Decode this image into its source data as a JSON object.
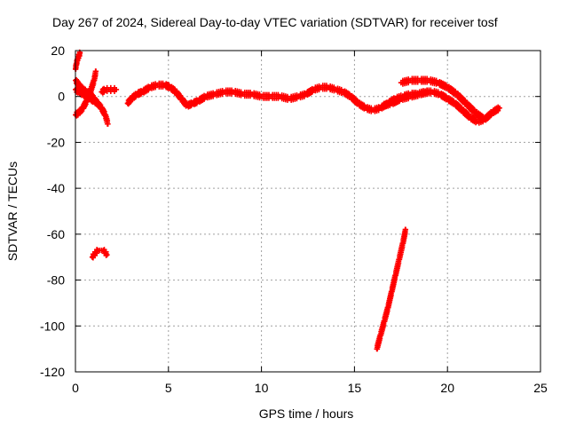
{
  "chart_data": {
    "type": "scatter",
    "title": "Day 267 of 2024, Sidereal Day-to-day VTEC variation (SDTVAR) for receiver tosf",
    "xlabel": "GPS time / hours",
    "ylabel": "SDTVAR / TECUs",
    "xlim": [
      0,
      25
    ],
    "ylim": [
      -120,
      20
    ],
    "xticks": [
      0,
      5,
      10,
      15,
      20,
      25
    ],
    "yticks": [
      -120,
      -100,
      -80,
      -60,
      -40,
      -20,
      0,
      20
    ],
    "xtick_labels": [
      "0",
      "5",
      "10",
      "15",
      "20",
      "25"
    ],
    "ytick_labels": [
      "-120",
      "-100",
      "-80",
      "-60",
      "-40",
      "-20",
      "0",
      "20"
    ],
    "grid": true,
    "marker_color": "#ff0000",
    "series": [
      {
        "x": [
          0.0,
          0.05,
          0.1,
          0.15,
          0.2,
          0.25
        ],
        "y": [
          12,
          14,
          16,
          17,
          18,
          19
        ]
      },
      {
        "x": [
          0.0,
          0.2,
          0.4,
          0.6,
          0.8,
          1.0,
          1.2,
          1.4,
          1.6,
          1.75
        ],
        "y": [
          7,
          5,
          3,
          2,
          1,
          -1,
          -3,
          -5,
          -8,
          -12
        ]
      },
      {
        "x": [
          0.0,
          0.2,
          0.4,
          0.6,
          0.8,
          1.0,
          1.1
        ],
        "y": [
          -8,
          -7,
          -5,
          -2,
          2,
          7,
          11
        ]
      },
      {
        "x": [
          0.0,
          0.2,
          0.4,
          0.6,
          0.8,
          1.0,
          1.2
        ],
        "y": [
          3,
          2,
          1,
          0,
          -1,
          -2,
          -3
        ]
      },
      {
        "x": [
          1.4,
          1.6,
          1.8,
          2.0,
          2.2
        ],
        "y": [
          2,
          3,
          3,
          3,
          3
        ]
      },
      {
        "x": [
          0.9,
          1.0,
          1.1,
          1.2,
          1.3,
          1.4,
          1.5,
          1.6,
          1.7
        ],
        "y": [
          -70,
          -69,
          -68,
          -67,
          -67,
          -67,
          -67,
          -68,
          -69
        ]
      },
      {
        "x": [
          2.8,
          3.0,
          3.3,
          3.6,
          4.0,
          4.4,
          4.8,
          5.1,
          5.4,
          5.7,
          6.0,
          6.3,
          6.6,
          7.0,
          7.5,
          8.0,
          8.5,
          9.0,
          9.5,
          10.0,
          10.5,
          11.0,
          11.5,
          12.0,
          12.4,
          12.8,
          13.2,
          13.6,
          14.0,
          14.4,
          14.8,
          15.2,
          15.6,
          16.0,
          16.4,
          16.8,
          17.2,
          17.6,
          18.0,
          18.4,
          18.8,
          19.2,
          19.6,
          20.0,
          20.4,
          20.8,
          21.2,
          21.6,
          22.0,
          22.4,
          22.8
        ],
        "y": [
          -3,
          -1,
          1,
          2,
          4,
          5,
          5,
          4,
          2,
          -1,
          -4,
          -3,
          -2,
          0,
          1,
          2,
          2,
          1,
          1,
          0,
          0,
          0,
          -1,
          0,
          1,
          3,
          4,
          4,
          3,
          2,
          0,
          -3,
          -5,
          -6,
          -5,
          -3,
          -1,
          0,
          1,
          1,
          2,
          2,
          1,
          -1,
          -3,
          -6,
          -9,
          -11,
          -10,
          -7,
          -5
        ]
      },
      {
        "x": [
          17.5,
          18.0,
          18.5,
          19.0,
          19.5,
          20.0,
          20.5,
          21.0,
          21.5,
          22.0
        ],
        "y": [
          6,
          7,
          7,
          7,
          6,
          4,
          1,
          -3,
          -7,
          -10
        ]
      },
      {
        "x": [
          16.5,
          17.0,
          17.5,
          18.0,
          18.5,
          19.0
        ],
        "y": [
          -4,
          -3,
          -1,
          0,
          1,
          2
        ]
      },
      {
        "x": [
          16.2,
          16.4,
          16.6,
          16.8,
          17.0,
          17.2,
          17.4,
          17.6,
          17.75
        ],
        "y": [
          -110,
          -104,
          -98,
          -92,
          -85,
          -78,
          -71,
          -64,
          -58
        ]
      }
    ]
  }
}
